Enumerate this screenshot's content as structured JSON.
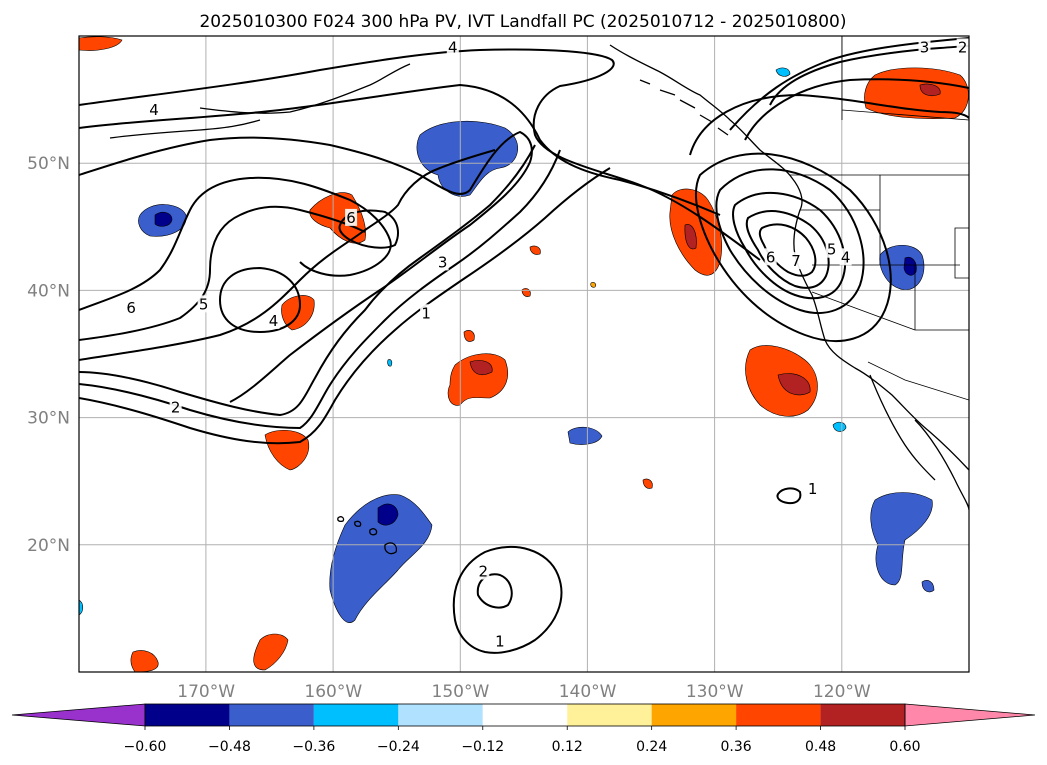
{
  "title": "2025010300 F024 300 hPa PV, IVT Landfall PC (2025010712 - 2025010800)",
  "map": {
    "extent_lon": [
      -180,
      -110
    ],
    "extent_lat": [
      10,
      60
    ],
    "projection": "PlateCarree",
    "lon_ticks": [
      {
        "value": -170,
        "label": "170°W"
      },
      {
        "value": -160,
        "label": "160°W"
      },
      {
        "value": -150,
        "label": "150°W"
      },
      {
        "value": -140,
        "label": "140°W"
      },
      {
        "value": -130,
        "label": "130°W"
      },
      {
        "value": -120,
        "label": "120°W"
      }
    ],
    "lat_ticks": [
      {
        "value": 20,
        "label": "20°N"
      },
      {
        "value": 30,
        "label": "30°N"
      },
      {
        "value": 40,
        "label": "40°N"
      },
      {
        "value": 50,
        "label": "50°N"
      }
    ],
    "gridlines": true,
    "coastlines": true
  },
  "colorbar": {
    "levels": [
      -0.6,
      -0.48,
      -0.36,
      -0.24,
      -0.12,
      0.12,
      0.24,
      0.36,
      0.48,
      0.6
    ],
    "tick_labels": [
      "−0.60",
      "−0.48",
      "−0.36",
      "−0.24",
      "−0.12",
      "0.12",
      "0.24",
      "0.36",
      "0.48",
      "0.60"
    ],
    "colors": [
      "#9932cc",
      "#00008b",
      "#3a5fcd",
      "#00bfff",
      "#b0e2ff",
      "#ffffff",
      "#fff09a",
      "#ffa500",
      "#ff4500",
      "#b22222",
      "#ff88aa"
    ],
    "extend": "both"
  },
  "contours": {
    "labels": [
      {
        "text": "4",
        "lon": -174.1,
        "lat": 54.2
      },
      {
        "text": "4",
        "lon": -150.6,
        "lat": 59.1
      },
      {
        "text": "3",
        "lon": -113.5,
        "lat": 59.1
      },
      {
        "text": "2",
        "lon": -110.5,
        "lat": 59.1
      },
      {
        "text": "6",
        "lon": -175.9,
        "lat": 38.6
      },
      {
        "text": "5",
        "lon": -170.2,
        "lat": 38.9
      },
      {
        "text": "4",
        "lon": -164.7,
        "lat": 37.6
      },
      {
        "text": "6",
        "lon": -158.6,
        "lat": 45.7
      },
      {
        "text": "3",
        "lon": -151.4,
        "lat": 42.2
      },
      {
        "text": "1",
        "lon": -152.7,
        "lat": 38.2
      },
      {
        "text": "2",
        "lon": -172.4,
        "lat": 30.8
      },
      {
        "text": "6",
        "lon": -125.6,
        "lat": 42.6
      },
      {
        "text": "7",
        "lon": -123.6,
        "lat": 42.3
      },
      {
        "text": "5",
        "lon": -120.8,
        "lat": 43.2
      },
      {
        "text": "4",
        "lon": -119.7,
        "lat": 42.6
      },
      {
        "text": "1",
        "lon": -122.3,
        "lat": 24.4
      },
      {
        "text": "2",
        "lon": -148.2,
        "lat": 17.9
      },
      {
        "text": "1",
        "lon": -146.9,
        "lat": 12.4
      }
    ]
  }
}
